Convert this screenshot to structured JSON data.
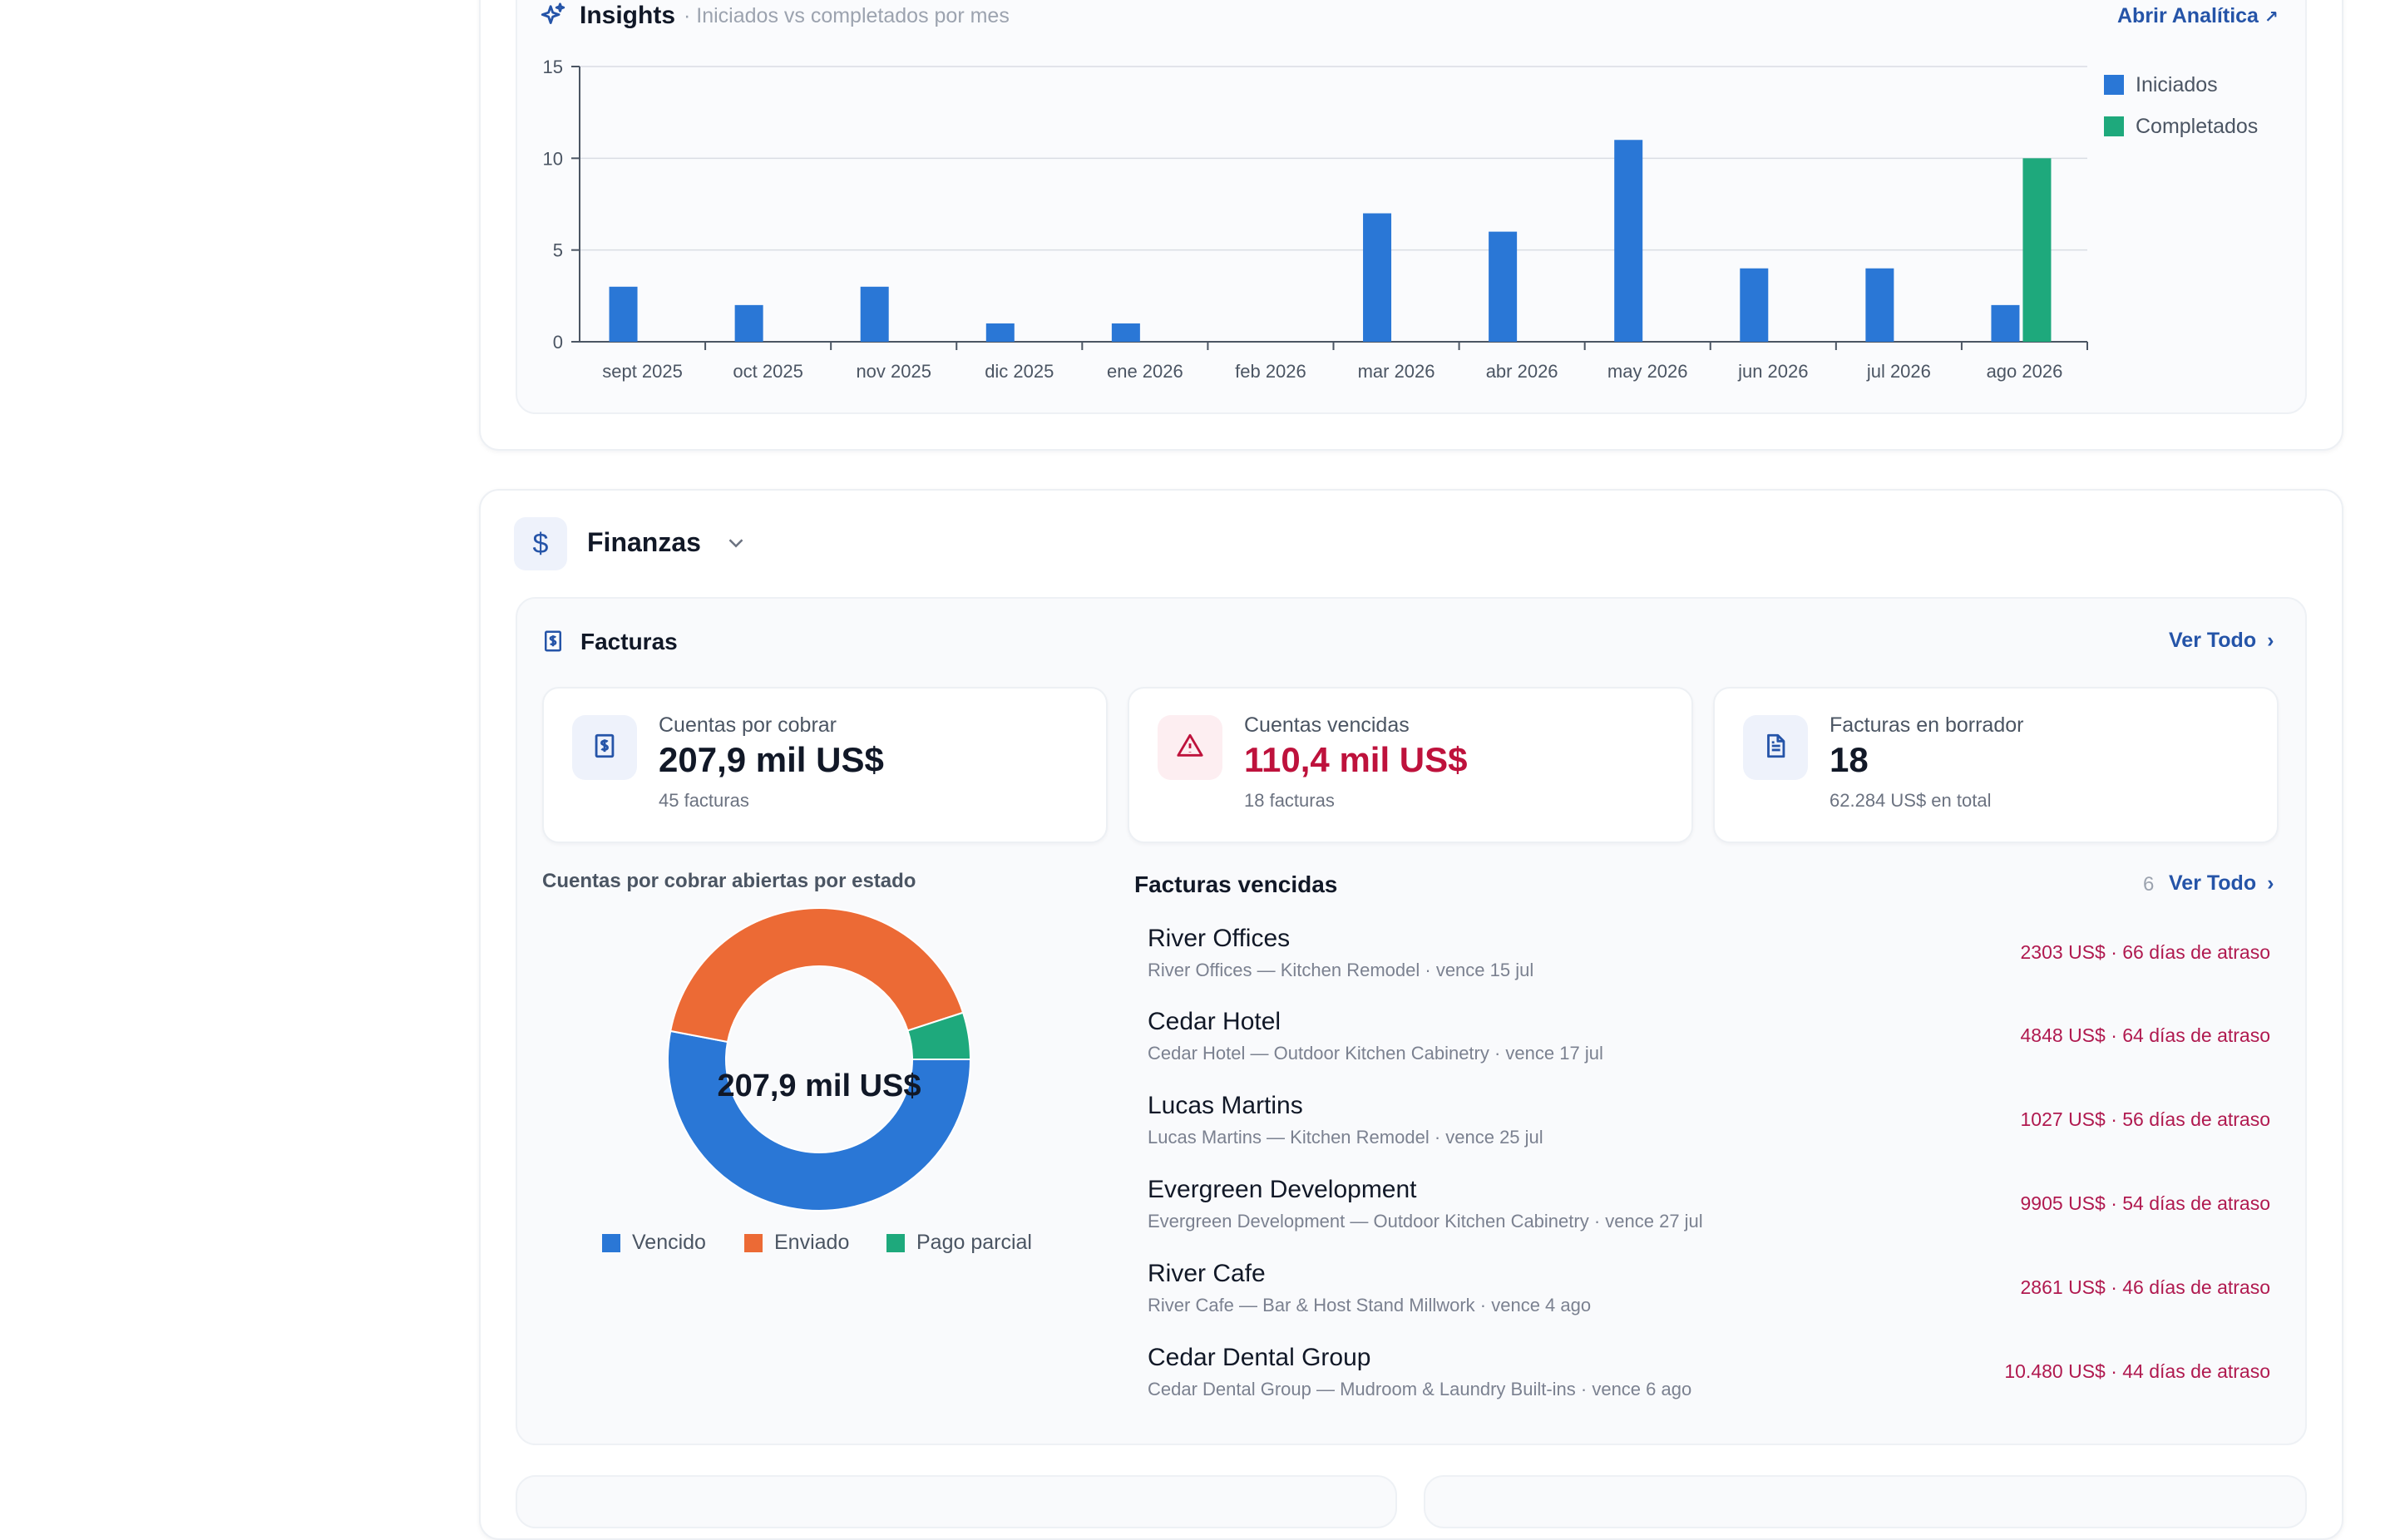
{
  "insights": {
    "title": "Insights",
    "subtitle": "· Iniciados vs completados por mes",
    "link_label": "Abrir Analítica",
    "link_icon": "external-arrow-icon"
  },
  "chart_data": {
    "type": "bar",
    "categories": [
      "sept 2025",
      "oct 2025",
      "nov 2025",
      "dic 2025",
      "ene 2026",
      "feb 2026",
      "mar 2026",
      "abr 2026",
      "may 2026",
      "jun 2026",
      "jul 2026",
      "ago 2026"
    ],
    "series": [
      {
        "name": "Iniciados",
        "color": "#2a77d6",
        "values": [
          3,
          2,
          3,
          1,
          1,
          0,
          7,
          6,
          11,
          4,
          4,
          2
        ]
      },
      {
        "name": "Completados",
        "color": "#1ea97c",
        "values": [
          0,
          0,
          0,
          0,
          0,
          0,
          0,
          0,
          0,
          0,
          0,
          10
        ]
      }
    ],
    "yticks": [
      0,
      5,
      10,
      15
    ],
    "ylim": [
      0,
      15
    ],
    "grid": true,
    "legend": "top-right",
    "title": "",
    "xlabel": "",
    "ylabel": ""
  },
  "finanzas": {
    "title": "Finanzas",
    "icon": "dollar-icon",
    "chevron": "chevron-down-icon"
  },
  "facturas": {
    "title": "Facturas",
    "link_label": "Ver Todo",
    "stats": [
      {
        "label": "Cuentas por cobrar",
        "value": "207,9 mil US$",
        "sub": "45 facturas",
        "icon": "invoice-dollar-icon",
        "color": "#111827"
      },
      {
        "label": "Cuentas vencidas",
        "value": "110,4 mil US$",
        "sub": "18 facturas",
        "icon": "warning-icon",
        "color": "#be123c"
      },
      {
        "label": "Facturas en borrador",
        "value": "18",
        "sub": "62.284 US$ en total",
        "icon": "document-icon",
        "color": "#111827"
      }
    ]
  },
  "donut": {
    "title": "Cuentas por cobrar abiertas por estado",
    "center_label": "207,9 mil US$",
    "segments": [
      {
        "name": "Vencido",
        "color": "#2a77d6",
        "fraction": 0.53
      },
      {
        "name": "Enviado",
        "color": "#ec6a35",
        "fraction": 0.42
      },
      {
        "name": "Pago parcial",
        "color": "#1ea97c",
        "fraction": 0.05
      }
    ]
  },
  "overdue": {
    "title": "Facturas vencidas",
    "count": "6",
    "link_label": "Ver Todo",
    "items": [
      {
        "name": "River Offices",
        "desc": "River Offices — Kitchen Remodel · vence 15 jul",
        "amount": "2303 US$ · 66 días de atraso"
      },
      {
        "name": "Cedar Hotel",
        "desc": "Cedar Hotel — Outdoor Kitchen Cabinetry · vence 17 jul",
        "amount": "4848 US$ · 64 días de atraso"
      },
      {
        "name": "Lucas Martins",
        "desc": "Lucas Martins — Kitchen Remodel · vence 25 jul",
        "amount": "1027 US$ · 56 días de atraso"
      },
      {
        "name": "Evergreen Development",
        "desc": "Evergreen Development — Outdoor Kitchen Cabinetry · vence 27 jul",
        "amount": "9905 US$ · 54 días de atraso"
      },
      {
        "name": "River Cafe",
        "desc": "River Cafe — Bar & Host Stand Millwork · vence 4 ago",
        "amount": "2861 US$ · 46 días de atraso"
      },
      {
        "name": "Cedar Dental Group",
        "desc": "Cedar Dental Group — Mudroom & Laundry Built-ins · vence 6 ago",
        "amount": "10.480 US$ · 44 días de atraso"
      }
    ]
  }
}
